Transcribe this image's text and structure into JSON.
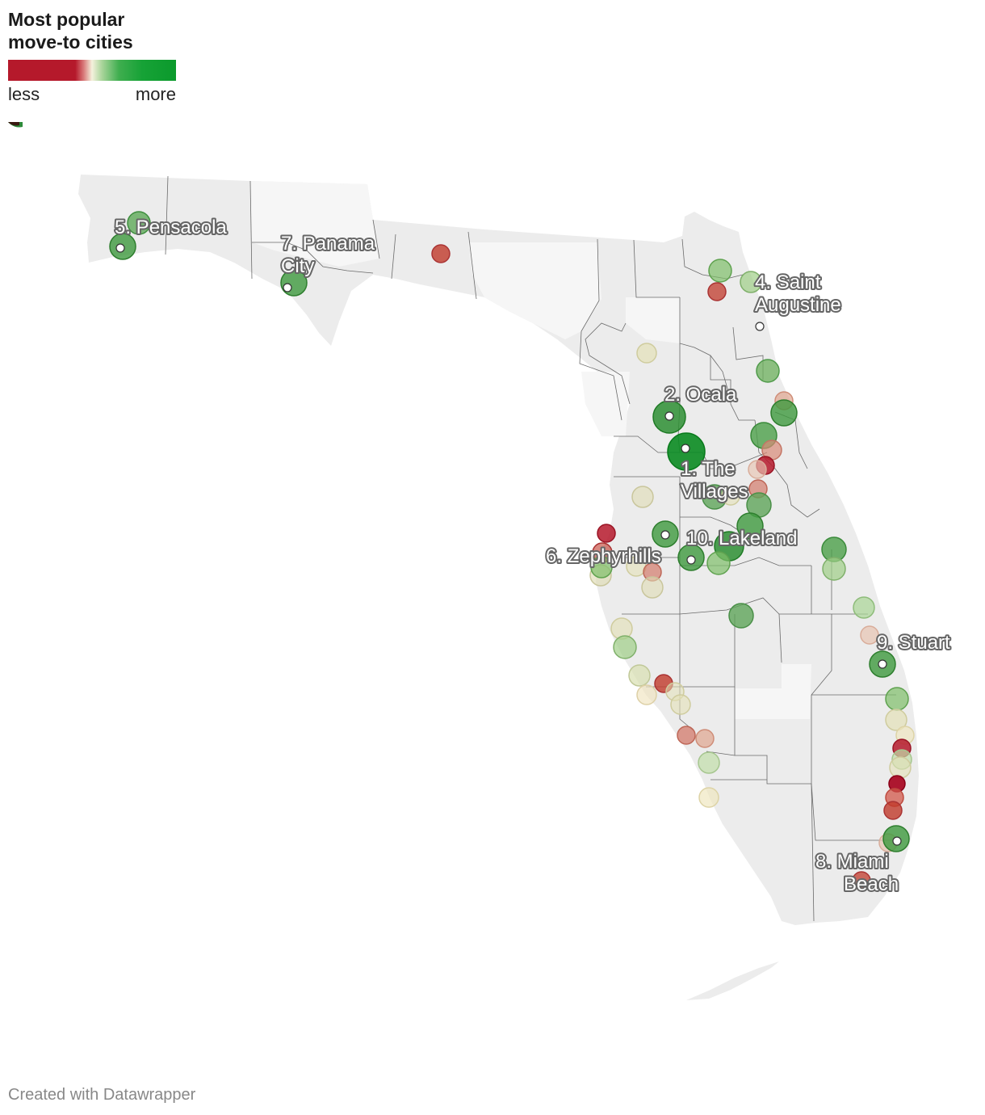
{
  "legend": {
    "title_line1": "Most popular",
    "title_line2": "move-to cities",
    "low_label": "less",
    "high_label": "more",
    "colors": {
      "less": "#b5192b",
      "mid": "#f4f1dc",
      "more": "#0b9a2c"
    }
  },
  "footer": {
    "credit": "Created with Datawrapper"
  },
  "map": {
    "region": "Florida",
    "land_color": "#ececec",
    "light_county_color": "#f6f6f6",
    "border_color": "#555555"
  },
  "ranked_cities": [
    {
      "rank": 1,
      "label_line1": "1. The",
      "label_line2": "Villages"
    },
    {
      "rank": 2,
      "label_line1": "2. Ocala",
      "label_line2": ""
    },
    {
      "rank": 4,
      "label_line1": "4. Saint",
      "label_line2": "Augustine"
    },
    {
      "rank": 5,
      "label_line1": "5. Pensacola",
      "label_line2": ""
    },
    {
      "rank": 6,
      "label_line1": "6. Zephyrhills",
      "label_line2": ""
    },
    {
      "rank": 7,
      "label_line1": "7. Panama",
      "label_line2": "City"
    },
    {
      "rank": 8,
      "label_line1": "8. Miami",
      "label_line2": "Beach"
    },
    {
      "rank": 9,
      "label_line1": "9. Stuart",
      "label_line2": ""
    },
    {
      "rank": 10,
      "label_line1": "10. Lakeland",
      "label_line2": ""
    }
  ]
}
